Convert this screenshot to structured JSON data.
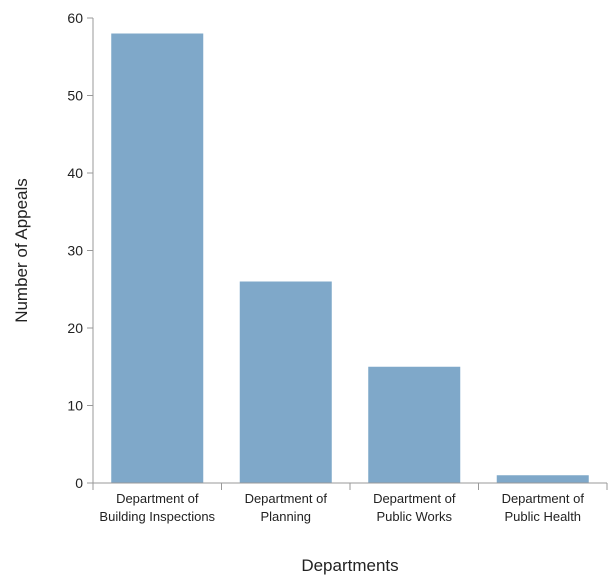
{
  "chart_data": {
    "type": "bar",
    "categories": [
      [
        "Department of",
        "Building Inspections"
      ],
      [
        "Department of",
        "Planning"
      ],
      [
        "Department of",
        "Public Works"
      ],
      [
        "Department of",
        "Public Health"
      ]
    ],
    "values": [
      58,
      26,
      15,
      1
    ],
    "xlabel": "Departments",
    "ylabel": "Number of Appeals",
    "ylim": [
      0,
      60
    ],
    "yticks": [
      0,
      10,
      20,
      30,
      40,
      50,
      60
    ],
    "grid": false,
    "bar_color": "#7fa8c9"
  }
}
